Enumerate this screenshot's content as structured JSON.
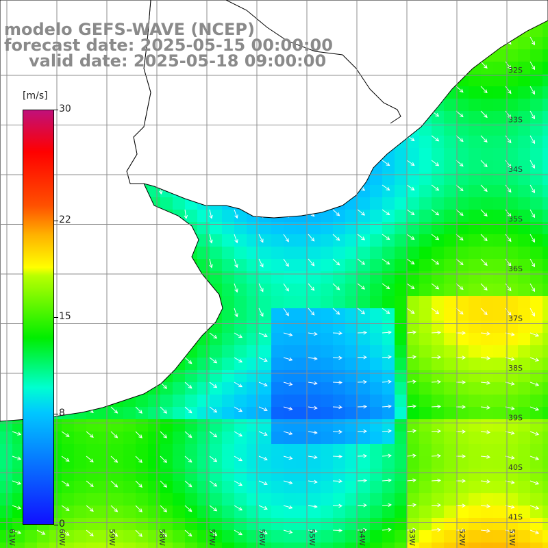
{
  "title": {
    "line1": "modelo GEFS-WAVE (NCEP)",
    "line2": "forecast date: 2025-05-15 00:00:00",
    "line3": "valid date: 2025-05-18 09:00:00"
  },
  "colorbar": {
    "units": "[m/s]",
    "min": 0,
    "max": 30,
    "ticks": [
      {
        "label": "30",
        "value": 30
      },
      {
        "label": "22",
        "value": 22
      },
      {
        "label": "15",
        "value": 15
      },
      {
        "label": "8",
        "value": 8
      },
      {
        "label": "0",
        "value": 0
      }
    ]
  },
  "axes": {
    "lon_labels": [
      "61W",
      "60W",
      "59W",
      "58W",
      "57W",
      "56W",
      "55W",
      "54W",
      "53W",
      "52W",
      "51W"
    ],
    "lat_labels": [
      "32S",
      "33S",
      "34S",
      "35S",
      "36S",
      "37S",
      "38S",
      "39S",
      "40S",
      "41S"
    ]
  },
  "map": {
    "land_color": "#ffffff",
    "grid_color": "#8c8c8c",
    "arrow_color": "#ffffff"
  }
}
